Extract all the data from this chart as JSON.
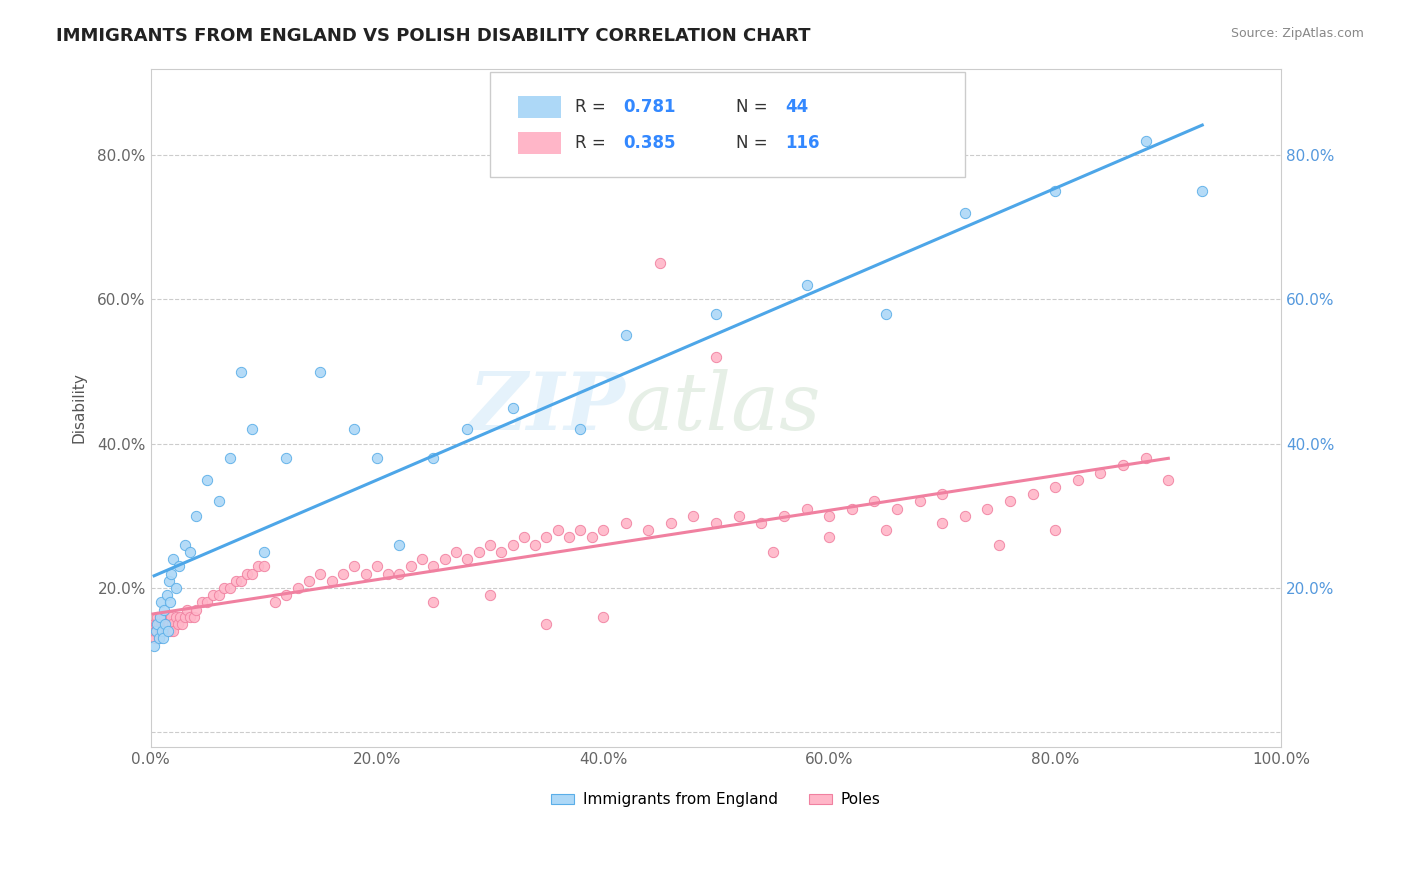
{
  "title": "IMMIGRANTS FROM ENGLAND VS POLISH DISABILITY CORRELATION CHART",
  "source": "Source: ZipAtlas.com",
  "ylabel": "Disability",
  "watermark_zip": "ZIP",
  "watermark_atlas": "atlas",
  "xlim": [
    0.0,
    1.0
  ],
  "ylim": [
    -0.02,
    0.92
  ],
  "xticks": [
    0.0,
    0.2,
    0.4,
    0.6,
    0.8,
    1.0
  ],
  "yticks": [
    0.0,
    0.2,
    0.4,
    0.6,
    0.8
  ],
  "xticklabels": [
    "0.0%",
    "20.0%",
    "40.0%",
    "60.0%",
    "80.0%",
    "100.0%"
  ],
  "yticklabels": [
    "",
    "20.0%",
    "40.0%",
    "60.0%",
    "80.0%"
  ],
  "england_fill_color": "#ADD8F7",
  "england_edge_color": "#5AAEE8",
  "poles_fill_color": "#FFB6C8",
  "poles_edge_color": "#F080A0",
  "england_line_color": "#4DA6E8",
  "poles_line_color": "#F080A0",
  "legend_label1": "Immigrants from England",
  "legend_label2": "Poles",
  "legend_R1": "0.781",
  "legend_N1": "44",
  "legend_R2": "0.385",
  "legend_N2": "116",
  "england_scatter_x": [
    0.003,
    0.005,
    0.006,
    0.007,
    0.008,
    0.009,
    0.01,
    0.011,
    0.012,
    0.013,
    0.014,
    0.015,
    0.016,
    0.017,
    0.018,
    0.02,
    0.022,
    0.025,
    0.03,
    0.035,
    0.04,
    0.05,
    0.06,
    0.07,
    0.08,
    0.09,
    0.1,
    0.12,
    0.15,
    0.18,
    0.2,
    0.22,
    0.25,
    0.28,
    0.32,
    0.38,
    0.42,
    0.5,
    0.58,
    0.65,
    0.72,
    0.8,
    0.88,
    0.93
  ],
  "england_scatter_y": [
    0.12,
    0.14,
    0.15,
    0.13,
    0.16,
    0.18,
    0.14,
    0.13,
    0.17,
    0.15,
    0.19,
    0.14,
    0.21,
    0.18,
    0.22,
    0.24,
    0.2,
    0.23,
    0.26,
    0.25,
    0.3,
    0.35,
    0.32,
    0.38,
    0.5,
    0.42,
    0.25,
    0.38,
    0.5,
    0.42,
    0.38,
    0.26,
    0.38,
    0.42,
    0.45,
    0.42,
    0.55,
    0.58,
    0.62,
    0.58,
    0.72,
    0.75,
    0.82,
    0.75
  ],
  "poles_scatter_x": [
    0.002,
    0.003,
    0.004,
    0.005,
    0.005,
    0.006,
    0.006,
    0.007,
    0.007,
    0.008,
    0.008,
    0.009,
    0.009,
    0.01,
    0.01,
    0.011,
    0.011,
    0.012,
    0.012,
    0.013,
    0.013,
    0.014,
    0.015,
    0.016,
    0.017,
    0.018,
    0.019,
    0.02,
    0.022,
    0.024,
    0.026,
    0.028,
    0.03,
    0.032,
    0.035,
    0.038,
    0.04,
    0.045,
    0.05,
    0.055,
    0.06,
    0.065,
    0.07,
    0.075,
    0.08,
    0.085,
    0.09,
    0.095,
    0.1,
    0.11,
    0.12,
    0.13,
    0.14,
    0.15,
    0.16,
    0.17,
    0.18,
    0.19,
    0.2,
    0.21,
    0.22,
    0.23,
    0.24,
    0.25,
    0.26,
    0.27,
    0.28,
    0.29,
    0.3,
    0.31,
    0.32,
    0.33,
    0.34,
    0.35,
    0.36,
    0.37,
    0.38,
    0.39,
    0.4,
    0.42,
    0.44,
    0.46,
    0.48,
    0.5,
    0.52,
    0.54,
    0.56,
    0.58,
    0.6,
    0.62,
    0.64,
    0.66,
    0.68,
    0.7,
    0.72,
    0.74,
    0.76,
    0.78,
    0.8,
    0.82,
    0.84,
    0.86,
    0.88,
    0.9,
    0.25,
    0.3,
    0.35,
    0.4,
    0.45,
    0.5,
    0.55,
    0.6,
    0.65,
    0.7,
    0.75,
    0.8
  ],
  "poles_scatter_y": [
    0.14,
    0.15,
    0.13,
    0.14,
    0.15,
    0.14,
    0.16,
    0.13,
    0.15,
    0.14,
    0.16,
    0.14,
    0.15,
    0.15,
    0.16,
    0.14,
    0.15,
    0.15,
    0.16,
    0.14,
    0.15,
    0.14,
    0.15,
    0.15,
    0.14,
    0.16,
    0.15,
    0.14,
    0.16,
    0.15,
    0.16,
    0.15,
    0.16,
    0.17,
    0.16,
    0.16,
    0.17,
    0.18,
    0.18,
    0.19,
    0.19,
    0.2,
    0.2,
    0.21,
    0.21,
    0.22,
    0.22,
    0.23,
    0.23,
    0.18,
    0.19,
    0.2,
    0.21,
    0.22,
    0.21,
    0.22,
    0.23,
    0.22,
    0.23,
    0.22,
    0.22,
    0.23,
    0.24,
    0.23,
    0.24,
    0.25,
    0.24,
    0.25,
    0.26,
    0.25,
    0.26,
    0.27,
    0.26,
    0.27,
    0.28,
    0.27,
    0.28,
    0.27,
    0.28,
    0.29,
    0.28,
    0.29,
    0.3,
    0.29,
    0.3,
    0.29,
    0.3,
    0.31,
    0.3,
    0.31,
    0.32,
    0.31,
    0.32,
    0.33,
    0.3,
    0.31,
    0.32,
    0.33,
    0.34,
    0.35,
    0.36,
    0.37,
    0.38,
    0.35,
    0.18,
    0.19,
    0.15,
    0.16,
    0.65,
    0.52,
    0.25,
    0.27,
    0.28,
    0.29,
    0.26,
    0.28
  ]
}
